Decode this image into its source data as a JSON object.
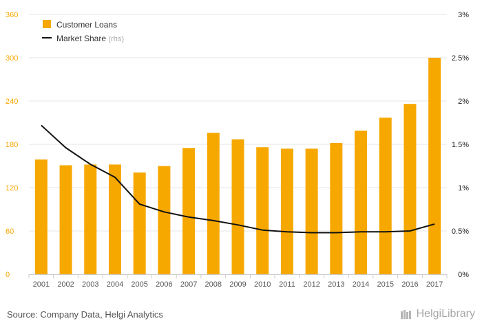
{
  "chart_data": {
    "type": "bar",
    "categories": [
      "2001",
      "2002",
      "2003",
      "2004",
      "2005",
      "2006",
      "2007",
      "2008",
      "2009",
      "2010",
      "2011",
      "2012",
      "2013",
      "2014",
      "2015",
      "2016",
      "2017"
    ],
    "series": [
      {
        "name": "Customer Loans",
        "type": "bar",
        "axis": "left",
        "color": "#f6a800",
        "values": [
          159,
          151,
          152,
          152,
          141,
          150,
          175,
          196,
          187,
          176,
          174,
          174,
          182,
          199,
          217,
          236,
          300
        ]
      },
      {
        "name": "Market Share",
        "legend_suffix": "(rhs)",
        "type": "line",
        "axis": "right",
        "color": "#111111",
        "values": [
          1.72,
          1.46,
          1.27,
          1.12,
          0.81,
          0.72,
          0.66,
          0.62,
          0.57,
          0.51,
          0.49,
          0.48,
          0.48,
          0.49,
          0.49,
          0.5,
          0.58
        ]
      }
    ],
    "left_axis": {
      "ylim": [
        0,
        360
      ],
      "ticks": [
        "0",
        "60",
        "120",
        "180",
        "240",
        "300",
        "360"
      ],
      "tick_color": "#f6a800"
    },
    "right_axis": {
      "ylim": [
        0,
        3
      ],
      "ticks": [
        "0%",
        "0.5%",
        "1%",
        "1.5%",
        "2%",
        "2.5%",
        "3%"
      ]
    },
    "grid": true,
    "legend_position": "top-left"
  },
  "footer": {
    "source": "Source: Company Data, Helgi Analytics",
    "logo_text": "HelgiLibrary"
  }
}
